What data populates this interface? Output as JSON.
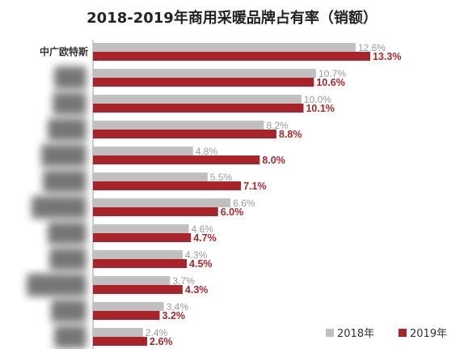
{
  "chart_data": {
    "type": "bar",
    "orientation": "horizontal",
    "title": "2018-2019年商用采暖品牌占有率（销额）",
    "categories": [
      "中广欧特斯",
      "",
      "",
      "",
      "",
      "",
      "",
      "",
      "",
      "",
      "",
      ""
    ],
    "series": [
      {
        "name": "2018年",
        "color": "#c0c0c0",
        "values": [
          12.6,
          10.7,
          10.0,
          8.2,
          4.8,
          5.5,
          6.6,
          4.6,
          4.3,
          3.7,
          3.4,
          2.4
        ]
      },
      {
        "name": "2019年",
        "color": "#a8232a",
        "values": [
          13.3,
          10.6,
          10.1,
          8.8,
          8.0,
          7.1,
          6.0,
          4.7,
          4.5,
          4.3,
          3.2,
          2.6
        ]
      }
    ],
    "value_suffix": "%",
    "xlim": [
      0,
      13.3
    ],
    "grid": false,
    "legend": "bottom-right"
  }
}
